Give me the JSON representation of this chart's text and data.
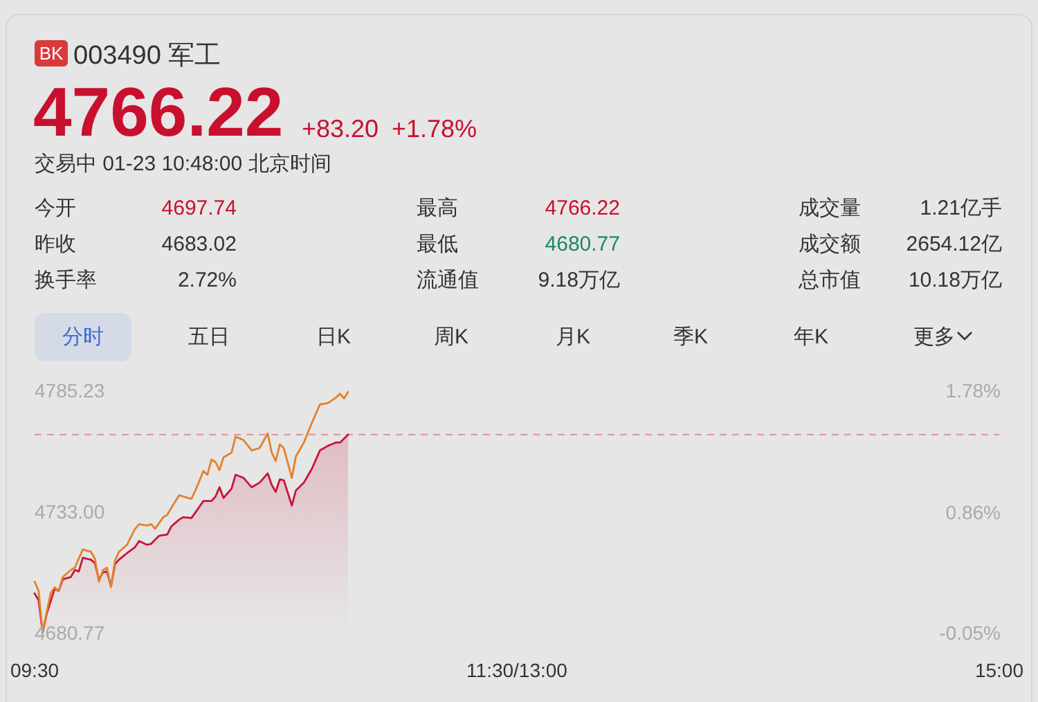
{
  "chart_data": {
    "type": "line",
    "title": "003490 军工",
    "annotations": [
      "BK",
      "4766.22",
      "+83.20",
      "+1.78%",
      "交易中 01-23 10:48:00 北京时间",
      "今开",
      "4697.74",
      "最高",
      "4766.22",
      "成交量",
      "1.21亿手",
      "昨收",
      "4683.02",
      "最低",
      "4680.77",
      "成交额",
      "2654.12亿",
      "换手率",
      "2.72%",
      "流通值",
      "9.18万亿",
      "总市值",
      "10.18万亿",
      "分时",
      "五日",
      "日K",
      "周K",
      "月K",
      "季K",
      "年K",
      "更多"
    ],
    "categories": [
      "09:30",
      null,
      null,
      null,
      null,
      null,
      null,
      null,
      null,
      null,
      null,
      null,
      null,
      null,
      null,
      null,
      null,
      null,
      null,
      null,
      null,
      null,
      null,
      null,
      null,
      null,
      null,
      null,
      null,
      null,
      null,
      null,
      null,
      null,
      null,
      null,
      null,
      null,
      null,
      null,
      null,
      null,
      null,
      null,
      null,
      null,
      null,
      null,
      null,
      null,
      null,
      null,
      null,
      null,
      null,
      null,
      null,
      null,
      null,
      null,
      null,
      null,
      null,
      null,
      null,
      null,
      null,
      null,
      null,
      null,
      null,
      null,
      null,
      null,
      null,
      null,
      null,
      null,
      null,
      null,
      null,
      null,
      null,
      null,
      null,
      null,
      null,
      null,
      null,
      null,
      null,
      null,
      null,
      null,
      null,
      null,
      null,
      null,
      null,
      null,
      null,
      null,
      null,
      null,
      null,
      null,
      null,
      null,
      null,
      null,
      null,
      null,
      null,
      null,
      null,
      null,
      null,
      null,
      null,
      null,
      "11:30/13:00",
      null,
      null,
      null,
      null,
      null,
      null,
      null,
      null,
      null,
      null,
      null,
      null,
      null,
      null,
      null,
      null,
      null,
      null,
      null,
      null,
      null,
      null,
      null,
      null,
      null,
      null,
      null,
      null,
      null,
      null,
      null,
      null,
      null,
      null,
      null,
      null,
      null,
      null,
      null,
      null,
      null,
      null,
      null,
      null,
      null,
      null,
      null,
      null,
      null,
      null,
      null,
      null,
      null,
      null,
      null,
      null,
      null,
      null,
      null,
      null,
      null,
      null,
      null,
      null,
      null,
      null,
      null,
      null,
      null,
      null,
      null,
      null,
      null,
      null,
      null,
      null,
      null,
      null,
      null,
      null,
      null,
      null,
      null,
      null,
      null,
      null,
      null,
      null,
      null,
      null,
      null,
      null,
      null,
      null,
      null,
      null,
      null,
      null,
      null,
      null,
      null,
      null,
      null,
      null,
      null,
      null,
      null,
      null,
      null,
      null,
      null,
      null,
      null,
      null,
      null,
      null,
      null,
      null,
      null,
      "15:00"
    ],
    "ylim": [
      4680.77,
      4785.23
    ],
    "yticks": [
      4680.77,
      {
        "value": 4733,
        "label": "4733.00"
      },
      4785.23
    ],
    "y2lim": [
      -0.05,
      1.78
    ],
    "y2ticks": [
      {
        "value": -0.05,
        "label": "-0.05%"
      },
      {
        "value": 0.86,
        "label": "0.86%"
      },
      {
        "value": 1.78,
        "label": "1.78%"
      }
    ],
    "ref_lines": [
      {
        "axis": "y",
        "value": 4766.22,
        "color": "#e0909a",
        "line_style": "dashed"
      }
    ],
    "series": [
      {
        "type": "area",
        "color": "#c8153a",
        "values": [
          4697.7,
          4694.9,
          4680.8,
          4688.9,
          4694.4,
          4699.8,
          4698.8,
          4703.8,
          4704.3,
          4704.8,
          4707.8,
          4707.2,
          4713.1,
          4712.7,
          4712.3,
          4710.8,
          4703.8,
          4706.8,
          4707.2,
          4700.8,
          4710.4,
          4712.3,
          4713.7,
          4715.1,
          4716.4,
          4717.7,
          4720.3,
          4719.5,
          4718.7,
          4719.1,
          4720.9,
          4722.6,
          4722.9,
          4723.1,
          4726.6,
          4728.1,
          4729.6,
          4730.6,
          4730.4,
          4730.2,
          4732.6,
          4735.1,
          4737.6,
          4737.6,
          4737.6,
          4739.5,
          4743.5,
          4738.9,
          4740.9,
          4742.9,
          4748.9,
          4748.2,
          4747.5,
          4745.5,
          4743.5,
          4744.5,
          4745.5,
          4747.5,
          4749.5,
          4744.5,
          4741.5,
          4746.9,
          4746.5,
          4741.1,
          4735.6,
          4742.1,
          4743.8,
          4745.5,
          4748.5,
          4751.5,
          4755.5,
          4759.4,
          4760.4,
          4761.4,
          4762.1,
          4762.8,
          4762.8,
          4764.5,
          4766.2,
          null,
          null,
          null,
          null,
          null,
          null,
          null,
          null,
          null,
          null,
          null,
          null,
          null,
          null,
          null,
          null,
          null,
          null,
          null,
          null,
          null,
          null,
          null,
          null,
          null,
          null,
          null,
          null,
          null,
          null,
          null,
          null,
          null,
          null,
          null,
          null,
          null,
          null,
          null,
          null,
          null,
          null,
          null,
          null,
          null,
          null,
          null,
          null,
          null,
          null,
          null,
          null,
          null,
          null,
          null,
          null,
          null,
          null,
          null,
          null,
          null,
          null,
          null,
          null,
          null,
          null,
          null,
          null,
          null,
          null,
          null,
          null,
          null,
          null,
          null,
          null,
          null,
          null,
          null,
          null,
          null,
          null,
          null,
          null,
          null,
          null,
          null,
          null,
          null,
          null,
          null,
          null,
          null,
          null,
          null,
          null,
          null,
          null,
          null,
          null,
          null,
          null,
          null,
          null,
          null,
          null,
          null,
          null,
          null,
          null,
          null,
          null,
          null,
          null,
          null,
          null,
          null,
          null,
          null,
          null,
          null,
          null,
          null,
          null,
          null,
          null,
          null,
          null,
          null,
          null,
          null,
          null,
          null,
          null,
          null,
          null,
          null,
          null,
          null,
          null,
          null,
          null,
          null,
          null,
          null,
          null,
          null,
          null,
          null,
          null,
          null,
          null,
          null,
          null,
          null,
          null,
          null,
          null,
          null,
          null,
          null,
          null
        ]
      },
      {
        "type": "line",
        "color": "#e3812b",
        "values": [
          4702.8,
          4698.8,
          4681.0,
          4689.5,
          4697.9,
          4700.4,
          4698.8,
          4704.8,
          4706.3,
          4707.8,
          4708.8,
          4712.8,
          4716.7,
          4716.2,
          4715.7,
          4712.7,
          4702.8,
          4707.8,
          4708.8,
          4700.4,
          4711.8,
          4715.7,
          4717.2,
          4718.7,
          4722.2,
          4725.6,
          4727.6,
          4727.3,
          4727.0,
          4727.6,
          4725.6,
          4728.1,
          4730.6,
          4731.6,
          4734.6,
          4737.4,
          4740.1,
          4739.5,
          4739.0,
          4738.5,
          4742.1,
          4746.3,
          4750.5,
          4748.9,
          4755.4,
          4754.4,
          4750.9,
          4756.4,
          4757.4,
          4758.4,
          4765.3,
          4764.6,
          4763.8,
          4761.6,
          4759.4,
          4759.9,
          4760.4,
          4763.6,
          4766.7,
          4758.4,
          4754.8,
          4762.0,
          4760.4,
          4754.0,
          4747.5,
          4756.8,
          4759.8,
          4762.8,
          4767.1,
          4771.3,
          4775.3,
          4779.2,
          4779.5,
          4779.8,
          4781.0,
          4782.2,
          4783.8,
          4781.8,
          4784.6,
          null,
          null,
          null,
          null,
          null,
          null,
          null,
          null,
          null,
          null,
          null,
          null,
          null,
          null,
          null,
          null,
          null,
          null,
          null,
          null,
          null,
          null,
          null,
          null,
          null,
          null,
          null,
          null,
          null,
          null,
          null,
          null,
          null,
          null,
          null,
          null,
          null,
          null,
          null,
          null,
          null,
          null,
          null,
          null,
          null,
          null,
          null,
          null,
          null,
          null,
          null,
          null,
          null,
          null,
          null,
          null,
          null,
          null,
          null,
          null,
          null,
          null,
          null,
          null,
          null,
          null,
          null,
          null,
          null,
          null,
          null,
          null,
          null,
          null,
          null,
          null,
          null,
          null,
          null,
          null,
          null,
          null,
          null,
          null,
          null,
          null,
          null,
          null,
          null,
          null,
          null,
          null,
          null,
          null,
          null,
          null,
          null,
          null,
          null,
          null,
          null,
          null,
          null,
          null,
          null,
          null,
          null,
          null,
          null,
          null,
          null,
          null,
          null,
          null,
          null,
          null,
          null,
          null,
          null,
          null,
          null,
          null,
          null,
          null,
          null,
          null,
          null,
          null,
          null,
          null,
          null,
          null,
          null,
          null,
          null,
          null,
          null,
          null,
          null,
          null,
          null,
          null,
          null,
          null,
          null,
          null,
          null,
          null,
          null,
          null,
          null,
          null,
          null,
          null,
          null,
          null,
          null,
          null,
          null,
          null,
          null,
          null
        ]
      }
    ]
  }
}
